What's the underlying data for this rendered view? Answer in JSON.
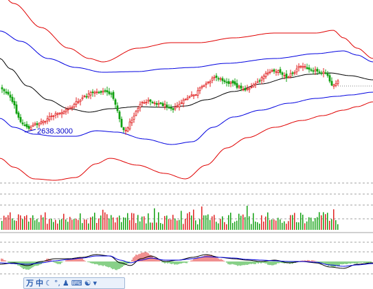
{
  "chart_data": [
    {
      "type": "line",
      "panel": "price",
      "title": "",
      "annotations": [
        {
          "label": "2638.3000"
        }
      ],
      "colors": {
        "up": "#e02020",
        "down": "#10a010",
        "outer_band": "#e00000",
        "inner_band": "#0000e0",
        "middle": "#000000",
        "label": "#0000c8"
      }
    },
    {
      "type": "bar",
      "panel": "volume",
      "colors": {
        "up": "#e02020",
        "down": "#10a010"
      }
    },
    {
      "type": "area",
      "panel": "macd",
      "colors": {
        "line1": "#000000",
        "line2": "#0000e0",
        "pos": "#e02020",
        "neg": "#10a010"
      }
    }
  ],
  "ime_toolbar": {
    "logo": "万",
    "mode": "中",
    "icons": [
      "moon-icon",
      "degree-icon",
      "user-icon",
      "keyboard-icon",
      "skin-icon",
      "dropdown-icon"
    ]
  }
}
